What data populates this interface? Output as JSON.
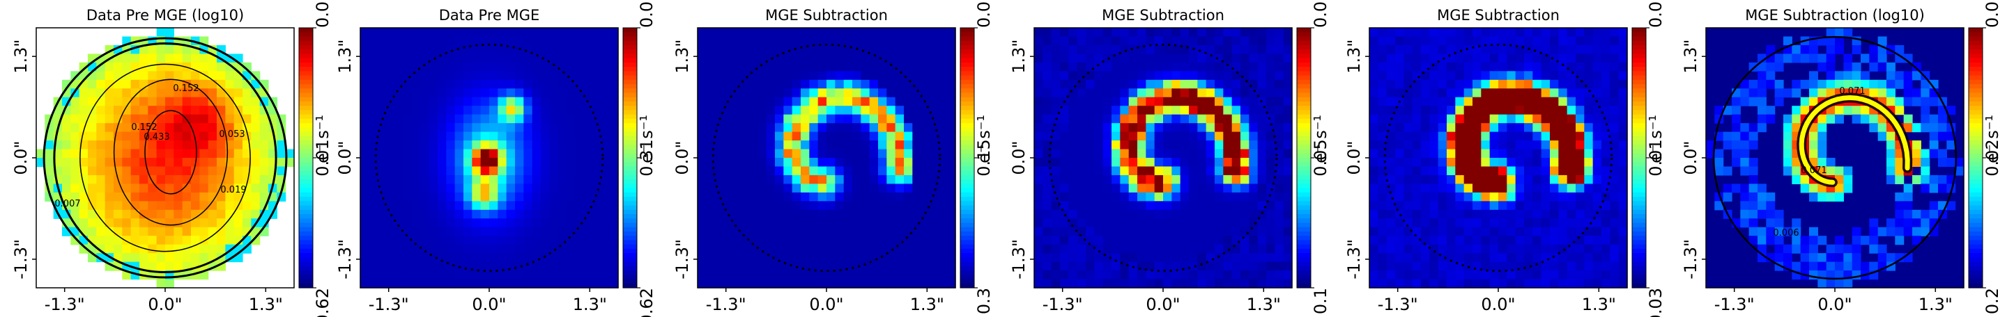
{
  "chart_data": [
    {
      "type": "heatmap",
      "title": "Data Pre MGE  (log10)",
      "x_ticks": [
        "-1.3\"",
        "0.0\"",
        "1.3\""
      ],
      "y_ticks": [
        "1.3\"",
        "0.0\"",
        "-1.3\""
      ],
      "colorbar": {
        "ticks": [
          "0.0",
          "0.01",
          "0.62"
        ],
        "unit": "e⁻ s⁻¹",
        "range": [
          0.0,
          0.62
        ],
        "log": true
      },
      "contour_labels": [
        "0.152",
        "0.152",
        "0.433",
        "0.053",
        "0.019",
        "0.007"
      ],
      "style": "contour-log"
    },
    {
      "type": "heatmap",
      "title": "Data Pre MGE",
      "x_ticks": [
        "-1.3\"",
        "0.0\"",
        "1.3\""
      ],
      "y_ticks": [
        "1.3\"",
        "0.0\"",
        "-1.3\""
      ],
      "colorbar": {
        "ticks": [
          "0.0",
          "0.31",
          "0.62"
        ],
        "unit": "e⁻ s⁻¹",
        "range": [
          0.0,
          0.62
        ],
        "log": false
      },
      "style": "galaxy"
    },
    {
      "type": "heatmap",
      "title": "MGE Subtraction",
      "x_ticks": [
        "-1.3\"",
        "0.0\"",
        "1.3\""
      ],
      "y_ticks": [
        "1.3\"",
        "0.0\"",
        "-1.3\""
      ],
      "colorbar": {
        "ticks": [
          "0.0",
          "0.15",
          "0.3"
        ],
        "unit": "e⁻ s⁻¹",
        "range": [
          0.0,
          0.3
        ],
        "log": false
      },
      "style": "arc-faint"
    },
    {
      "type": "heatmap",
      "title": "MGE Subtraction",
      "x_ticks": [
        "-1.3\"",
        "0.0\"",
        "1.3\""
      ],
      "y_ticks": [
        "1.3\"",
        "0.0\"",
        "-1.3\""
      ],
      "colorbar": {
        "ticks": [
          "0.0",
          "0.05",
          "0.1"
        ],
        "unit": "e⁻ s⁻¹",
        "range": [
          0.0,
          0.1
        ],
        "log": false
      },
      "style": "arc-medium"
    },
    {
      "type": "heatmap",
      "title": "MGE Subtraction",
      "x_ticks": [
        "-1.3\"",
        "0.0\"",
        "1.3\""
      ],
      "y_ticks": [
        "1.3\"",
        "0.0\"",
        "-1.3\""
      ],
      "colorbar": {
        "ticks": [
          "0.0",
          "0.01",
          "0.03"
        ],
        "unit": "e⁻ s⁻¹",
        "range": [
          0.0,
          0.03
        ],
        "log": false
      },
      "style": "arc-saturated"
    },
    {
      "type": "heatmap",
      "title": "MGE Subtraction  (log10)",
      "x_ticks": [
        "-1.3\"",
        "0.0\"",
        "1.3\""
      ],
      "y_ticks": [
        "1.3\"",
        "0.0\"",
        "-1.3\""
      ],
      "colorbar": {
        "ticks": [
          "0.0",
          "0.02",
          "0.2"
        ],
        "unit": "e⁻ s⁻¹",
        "range": [
          0.0,
          0.2
        ],
        "log": true
      },
      "contour_labels": [
        "0.071",
        "0.071",
        "0.006"
      ],
      "style": "contour-arc"
    }
  ],
  "colors": {
    "jet": [
      "#00008f",
      "#0000ff",
      "#0080ff",
      "#00ffff",
      "#80ff80",
      "#ffff00",
      "#ff8000",
      "#ff0000",
      "#800000"
    ]
  }
}
